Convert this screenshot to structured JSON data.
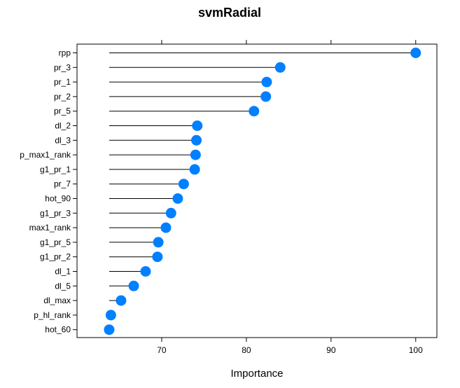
{
  "chart_data": {
    "type": "lollipop",
    "title": "svmRadial",
    "xlabel": "Importance",
    "ylabel": "",
    "xlim": [
      60,
      102.5
    ],
    "xticks": [
      70,
      80,
      90,
      100
    ],
    "xtick_labels": [
      "70",
      "80",
      "90",
      "100"
    ],
    "grid": false,
    "point_color": "#0080ff",
    "baseline": 63.8,
    "categories": [
      "rpp",
      "pr_3",
      "pr_1",
      "pr_2",
      "pr_5",
      "dl_2",
      "dl_3",
      "p_max1_rank",
      "g1_pr_1",
      "pr_7",
      "hot_90",
      "g1_pr_3",
      "max1_rank",
      "g1_pr_5",
      "g1_pr_2",
      "dl_1",
      "dl_5",
      "dl_max",
      "p_hl_rank",
      "hot_60"
    ],
    "values": [
      100,
      84.0,
      82.4,
      82.3,
      80.9,
      74.2,
      74.1,
      74.0,
      73.9,
      72.6,
      71.9,
      71.1,
      70.5,
      69.6,
      69.5,
      68.1,
      66.7,
      65.2,
      64.0,
      63.8
    ]
  }
}
